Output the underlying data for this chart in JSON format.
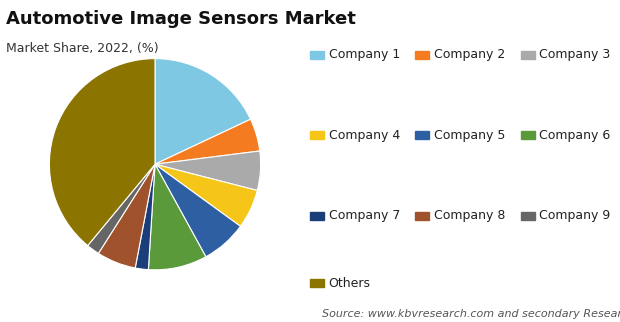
{
  "title": "Automotive Image Sensors Market",
  "subtitle": "Market Share, 2022, (%)",
  "source": "Source: www.kbvresearch.com and secondary Research Analysis",
  "labels": [
    "Company 1",
    "Company 2",
    "Company 3",
    "Company 4",
    "Company 5",
    "Company 6",
    "Company 7",
    "Company 8",
    "Company 9",
    "Others"
  ],
  "values": [
    18,
    5,
    6,
    6,
    7,
    9,
    2,
    6,
    2,
    39
  ],
  "colors": [
    "#7EC8E3",
    "#F47B20",
    "#AAAAAA",
    "#F5C518",
    "#2E5FA3",
    "#5A9A3A",
    "#1A3E7A",
    "#A0522D",
    "#666666",
    "#8B7500"
  ],
  "title_fontsize": 13,
  "subtitle_fontsize": 9,
  "source_fontsize": 8,
  "legend_fontsize": 9
}
